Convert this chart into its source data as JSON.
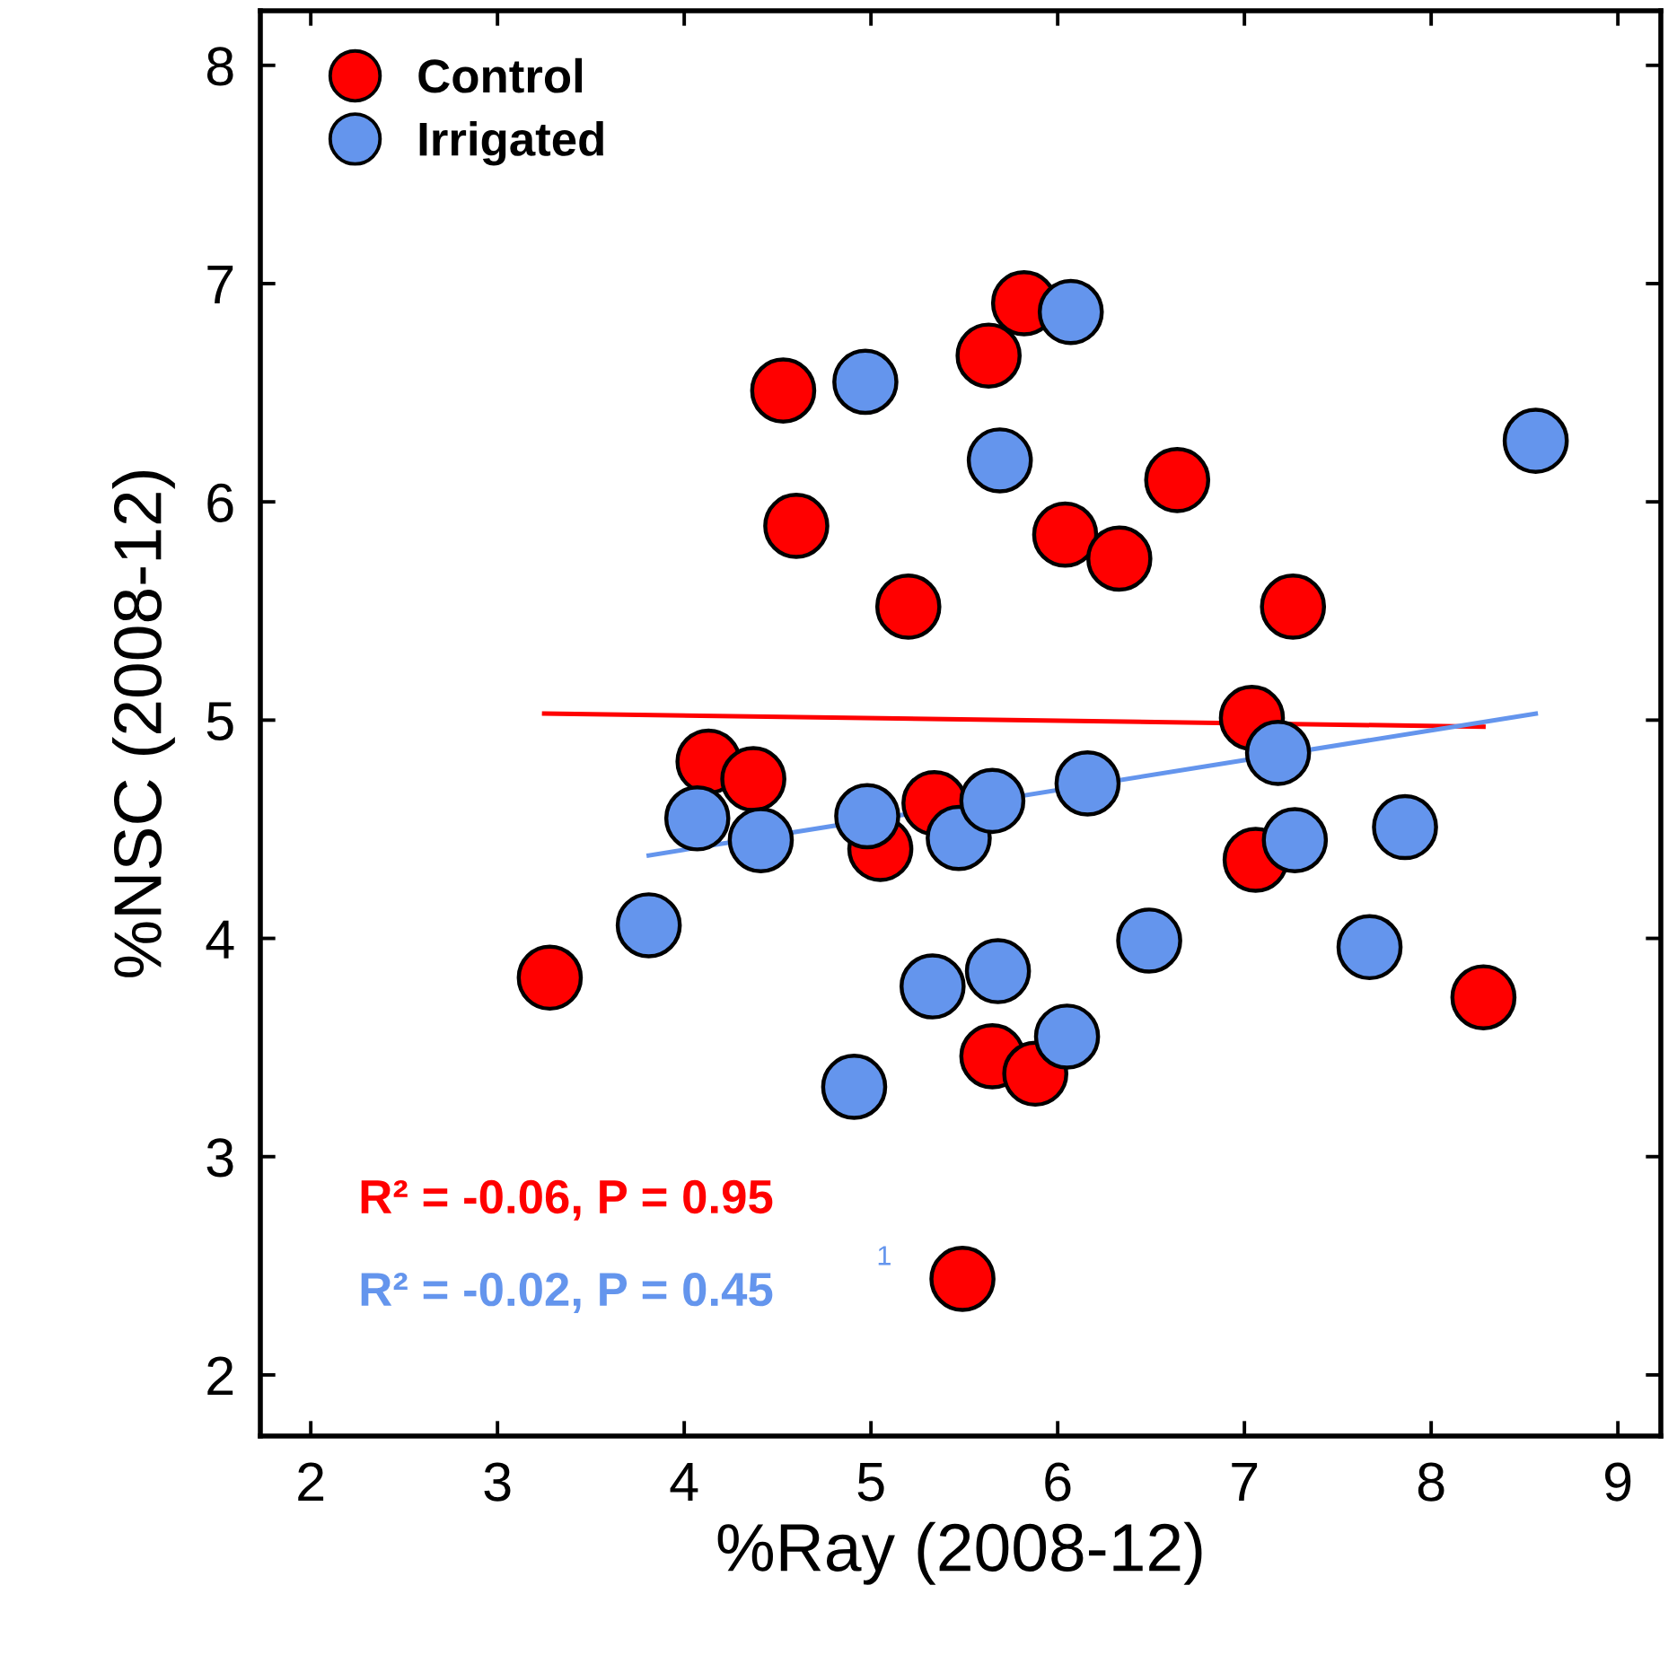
{
  "chart_data": {
    "type": "scatter",
    "xlabel": "%Ray (2008-12)",
    "ylabel": "%NSC (2008-12)",
    "xlim": [
      1.73,
      9.23
    ],
    "ylim": [
      1.72,
      8.25
    ],
    "xticks": [
      2,
      3,
      4,
      5,
      6,
      7,
      8,
      9
    ],
    "yticks": [
      2,
      3,
      4,
      5,
      6,
      7,
      8
    ],
    "grid": false,
    "legend": "top left",
    "marker": "circle",
    "series": [
      {
        "name": "Control",
        "color": "#ff0000",
        "x": [
          3.28,
          4.53,
          4.6,
          4.13,
          4.37,
          5.2,
          5.05,
          5.34,
          5.63,
          5.82,
          6.04,
          6.33,
          6.64,
          5.65,
          5.88,
          5.49,
          7.04,
          7.06,
          7.26,
          8.28
        ],
        "values": [
          3.82,
          6.51,
          5.89,
          4.81,
          4.73,
          5.52,
          4.41,
          4.62,
          6.67,
          6.91,
          5.85,
          5.74,
          6.1,
          3.46,
          3.38,
          2.44,
          5.01,
          4.36,
          5.52,
          3.73
        ]
      },
      {
        "name": "Irrigated",
        "color": "#6495ed",
        "x": [
          4.97,
          6.07,
          5.69,
          8.56,
          7.18,
          4.07,
          4.41,
          4.98,
          5.47,
          5.65,
          6.16,
          7.27,
          7.86,
          3.81,
          6.49,
          7.67,
          5.33,
          5.68,
          6.05,
          4.91
        ],
        "values": [
          6.55,
          6.87,
          6.19,
          6.28,
          4.85,
          4.55,
          4.45,
          4.56,
          4.46,
          4.63,
          4.71,
          4.45,
          4.51,
          4.06,
          3.99,
          3.96,
          3.78,
          3.85,
          3.55,
          3.32
        ]
      },
      {
        "type": "line",
        "marker": "none",
        "color": "#ff0000",
        "x": [
          3.25,
          8.28
        ],
        "values": [
          5.03,
          4.97
        ]
      },
      {
        "type": "line",
        "marker": "none",
        "color": "#6495ed",
        "x": [
          3.81,
          8.56
        ],
        "values": [
          4.38,
          5.03
        ]
      }
    ],
    "annotations": [
      "R² = -0.06, P = 0.95",
      "R² = -0.02, P = 0.45",
      "1"
    ]
  }
}
